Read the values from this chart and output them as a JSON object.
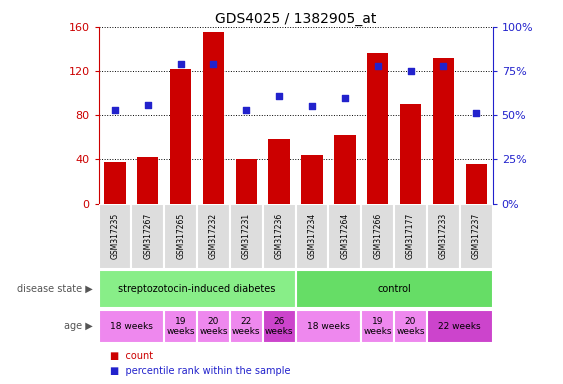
{
  "title": "GDS4025 / 1382905_at",
  "samples": [
    "GSM317235",
    "GSM317267",
    "GSM317265",
    "GSM317232",
    "GSM317231",
    "GSM317236",
    "GSM317234",
    "GSM317264",
    "GSM317266",
    "GSM317177",
    "GSM317233",
    "GSM317237"
  ],
  "counts": [
    38,
    42,
    122,
    155,
    40,
    58,
    44,
    62,
    136,
    90,
    132,
    36
  ],
  "percentiles": [
    53,
    56,
    79,
    79,
    53,
    61,
    55,
    60,
    78,
    75,
    78,
    51
  ],
  "bar_color": "#cc0000",
  "dot_color": "#2222cc",
  "ylim_left": [
    0,
    160
  ],
  "ylim_right": [
    0,
    100
  ],
  "yticks_left": [
    0,
    40,
    80,
    120,
    160
  ],
  "yticks_right": [
    0,
    25,
    50,
    75,
    100
  ],
  "tick_label_color_left": "#cc0000",
  "tick_label_color_right": "#2222cc",
  "xtick_bg": "#dddddd",
  "disease_groups": [
    {
      "label": "streptozotocin-induced diabetes",
      "start": 0,
      "end": 6,
      "color": "#88ee88"
    },
    {
      "label": "control",
      "start": 6,
      "end": 12,
      "color": "#66dd66"
    }
  ],
  "age_groups": [
    {
      "label": "18 weeks",
      "start": 0,
      "end": 2,
      "color": "#ee88ee"
    },
    {
      "label": "19\nweeks",
      "start": 2,
      "end": 3,
      "color": "#ee88ee"
    },
    {
      "label": "20\nweeks",
      "start": 3,
      "end": 4,
      "color": "#ee88ee"
    },
    {
      "label": "22\nweeks",
      "start": 4,
      "end": 5,
      "color": "#ee88ee"
    },
    {
      "label": "26\nweeks",
      "start": 5,
      "end": 6,
      "color": "#cc44cc"
    },
    {
      "label": "18 weeks",
      "start": 6,
      "end": 8,
      "color": "#ee88ee"
    },
    {
      "label": "19\nweeks",
      "start": 8,
      "end": 9,
      "color": "#ee88ee"
    },
    {
      "label": "20\nweeks",
      "start": 9,
      "end": 10,
      "color": "#ee88ee"
    },
    {
      "label": "22 weeks",
      "start": 10,
      "end": 12,
      "color": "#cc44cc"
    }
  ],
  "legend_count_color": "#cc0000",
  "legend_pct_color": "#2222cc"
}
